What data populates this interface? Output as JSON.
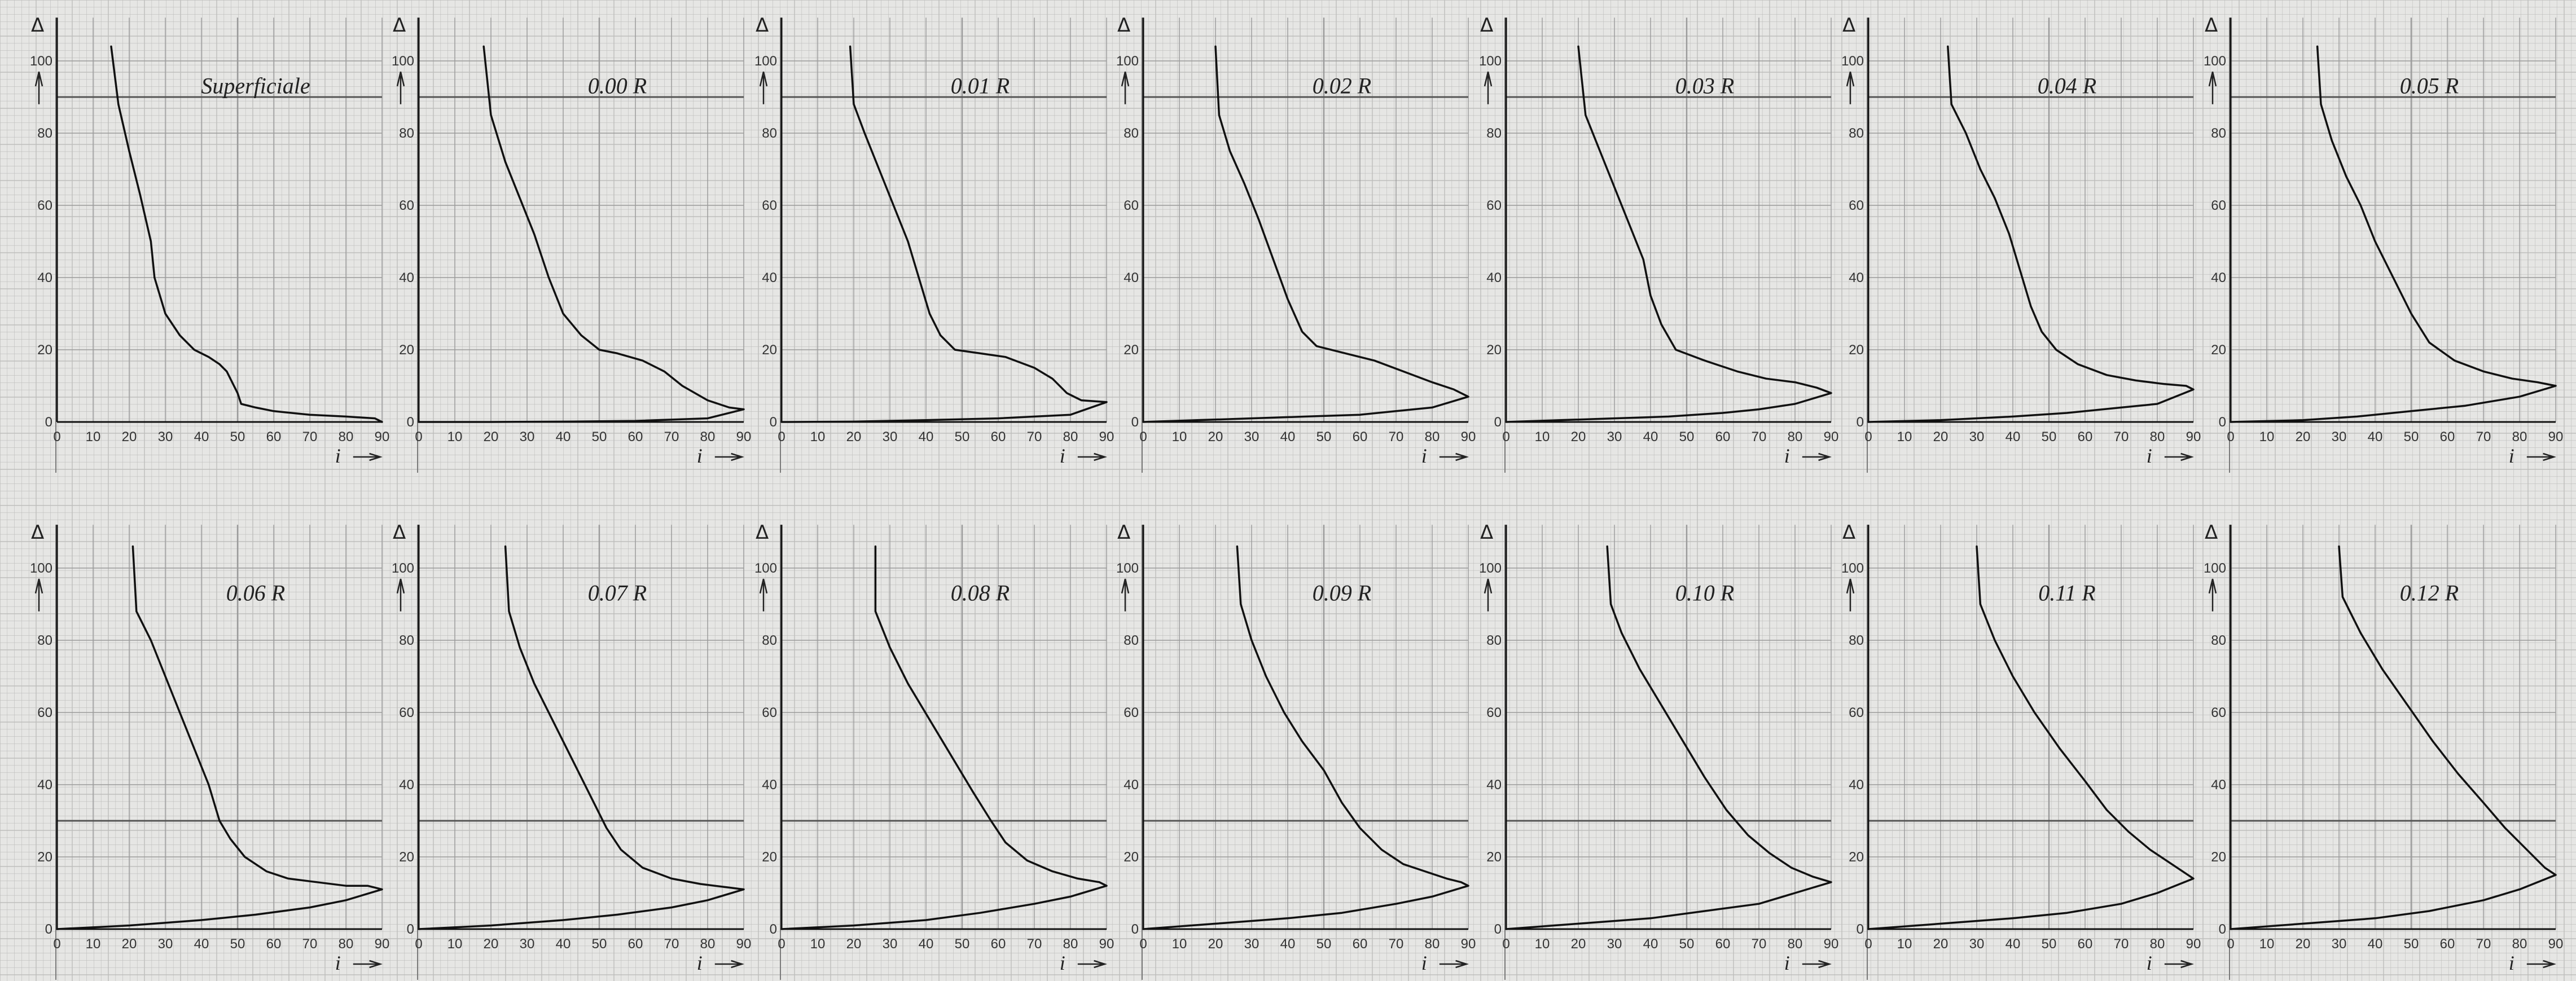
{
  "chart_data": [
    {
      "type": "line",
      "title": "Superficiale",
      "ylabel": "Δ",
      "xlabel": "i",
      "xlim": [
        0,
        90
      ],
      "ylim": [
        0,
        100
      ],
      "xticks": [
        0,
        10,
        20,
        30,
        40,
        50,
        60,
        70,
        80,
        90
      ],
      "yticks": [
        0,
        20,
        40,
        60,
        80,
        100
      ],
      "x": [
        15,
        17,
        20,
        23,
        26,
        27,
        30,
        34,
        38,
        42,
        45,
        47,
        48,
        49,
        50,
        51,
        55,
        60,
        70,
        80,
        88,
        90
      ],
      "y": [
        104,
        88,
        75,
        63,
        50,
        40,
        30,
        24,
        20,
        18,
        16,
        14,
        12,
        10,
        8,
        5,
        4,
        3,
        2,
        1.5,
        1,
        0
      ]
    },
    {
      "type": "line",
      "title": "0.00 R",
      "ylabel": "Δ",
      "xlabel": "i",
      "xlim": [
        0,
        90
      ],
      "ylim": [
        0,
        100
      ],
      "xticks": [
        0,
        10,
        20,
        30,
        40,
        50,
        60,
        70,
        80,
        90
      ],
      "yticks": [
        0,
        20,
        40,
        60,
        80,
        100
      ],
      "x": [
        18,
        20,
        24,
        28,
        32,
        36,
        40,
        45,
        50,
        55,
        62,
        68,
        73,
        80,
        86,
        90,
        80,
        60,
        40,
        20,
        0
      ],
      "y": [
        104,
        85,
        72,
        62,
        52,
        40,
        30,
        24,
        20,
        19,
        17,
        14,
        10,
        6,
        4,
        3.5,
        1,
        0.3,
        0.1,
        0,
        0
      ]
    },
    {
      "type": "line",
      "title": "0.01 R",
      "ylabel": "Δ",
      "xlabel": "i",
      "xlim": [
        0,
        90
      ],
      "ylim": [
        0,
        100
      ],
      "xticks": [
        0,
        10,
        20,
        30,
        40,
        50,
        60,
        70,
        80,
        90
      ],
      "yticks": [
        0,
        20,
        40,
        60,
        80,
        100
      ],
      "x": [
        19,
        20,
        23,
        27,
        31,
        35,
        38,
        41,
        44,
        48,
        55,
        62,
        70,
        75,
        79,
        83,
        90,
        80,
        60,
        40,
        20,
        0
      ],
      "y": [
        104,
        88,
        80,
        70,
        60,
        50,
        40,
        30,
        24,
        20,
        19,
        18,
        15,
        12,
        8,
        6,
        5.5,
        2,
        1,
        0.5,
        0.1,
        0
      ]
    },
    {
      "type": "line",
      "title": "0.02 R",
      "ylabel": "Δ",
      "xlabel": "i",
      "xlim": [
        0,
        90
      ],
      "ylim": [
        0,
        100
      ],
      "xticks": [
        0,
        10,
        20,
        30,
        40,
        50,
        60,
        70,
        80,
        90
      ],
      "yticks": [
        0,
        20,
        40,
        60,
        80,
        100
      ],
      "x": [
        20,
        21,
        24,
        28,
        32,
        36,
        40,
        44,
        48,
        56,
        64,
        72,
        80,
        86,
        90,
        80,
        70,
        60,
        45,
        30,
        15,
        0
      ],
      "y": [
        104,
        85,
        75,
        66,
        56,
        45,
        34,
        25,
        21,
        19,
        17,
        14,
        11,
        9,
        7,
        4,
        3,
        2,
        1.5,
        1,
        0.5,
        0
      ]
    },
    {
      "type": "line",
      "title": "0.03 R",
      "ylabel": "Δ",
      "xlabel": "i",
      "xlim": [
        0,
        90
      ],
      "ylim": [
        0,
        100
      ],
      "xticks": [
        0,
        10,
        20,
        30,
        40,
        50,
        60,
        70,
        80,
        90
      ],
      "yticks": [
        0,
        20,
        40,
        60,
        80,
        100
      ],
      "x": [
        20,
        22,
        26,
        30,
        34,
        38,
        40,
        43,
        47,
        55,
        64,
        72,
        80,
        86,
        90,
        80,
        70,
        60,
        45,
        30,
        15,
        0
      ],
      "y": [
        104,
        85,
        75,
        65,
        55,
        45,
        35,
        27,
        20,
        17,
        14,
        12,
        11,
        9.5,
        8,
        5,
        3.5,
        2.5,
        1.5,
        1,
        0.5,
        0
      ]
    },
    {
      "type": "line",
      "title": "0.04 R",
      "ylabel": "Δ",
      "xlabel": "i",
      "xlim": [
        0,
        90
      ],
      "ylim": [
        0,
        100
      ],
      "xticks": [
        0,
        10,
        20,
        30,
        40,
        50,
        60,
        70,
        80,
        90
      ],
      "yticks": [
        0,
        20,
        40,
        60,
        80,
        100
      ],
      "x": [
        22,
        23,
        27,
        31,
        35,
        39,
        42,
        45,
        48,
        52,
        58,
        66,
        74,
        82,
        88,
        90,
        80,
        70,
        55,
        40,
        20,
        0
      ],
      "y": [
        104,
        88,
        80,
        70,
        62,
        52,
        42,
        32,
        25,
        20,
        16,
        13,
        11.5,
        10.5,
        10,
        9,
        5,
        4,
        2.5,
        1.5,
        0.5,
        0
      ]
    },
    {
      "type": "line",
      "title": "0.05 R",
      "ylabel": "Δ",
      "xlabel": "i",
      "xlim": [
        0,
        90
      ],
      "ylim": [
        0,
        100
      ],
      "xticks": [
        0,
        10,
        20,
        30,
        40,
        50,
        60,
        70,
        80,
        90
      ],
      "yticks": [
        0,
        20,
        40,
        60,
        80,
        100
      ],
      "x": [
        24,
        25,
        28,
        32,
        36,
        40,
        45,
        50,
        55,
        62,
        70,
        78,
        85,
        90,
        80,
        65,
        50,
        35,
        20,
        0
      ],
      "y": [
        104,
        88,
        78,
        68,
        60,
        50,
        40,
        30,
        22,
        17,
        14,
        12,
        11,
        10,
        7,
        4.5,
        3,
        1.5,
        0.5,
        0
      ]
    },
    {
      "type": "line",
      "title": "0.06 R",
      "ylabel": "Δ",
      "xlabel": "i",
      "xlim": [
        0,
        90
      ],
      "ylim": [
        0,
        100
      ],
      "xticks": [
        0,
        10,
        20,
        30,
        40,
        50,
        60,
        70,
        80,
        90
      ],
      "yticks": [
        0,
        20,
        40,
        60,
        80,
        100
      ],
      "x": [
        21,
        22,
        26,
        30,
        34,
        38,
        42,
        45,
        48,
        52,
        58,
        64,
        72,
        80,
        86,
        90,
        80,
        70,
        55,
        40,
        20,
        0
      ],
      "y": [
        106,
        88,
        80,
        70,
        60,
        50,
        40,
        30,
        25,
        20,
        16,
        14,
        13,
        12,
        12,
        11,
        8,
        6,
        4,
        2.5,
        1,
        0
      ]
    },
    {
      "type": "line",
      "title": "0.07 R",
      "ylabel": "Δ",
      "xlabel": "i",
      "xlim": [
        0,
        90
      ],
      "ylim": [
        0,
        100
      ],
      "xticks": [
        0,
        10,
        20,
        30,
        40,
        50,
        60,
        70,
        80,
        90
      ],
      "yticks": [
        0,
        20,
        40,
        60,
        80,
        100
      ],
      "x": [
        24,
        25,
        28,
        32,
        37,
        42,
        47,
        52,
        56,
        62,
        70,
        78,
        86,
        90,
        80,
        70,
        55,
        40,
        20,
        0
      ],
      "y": [
        106,
        88,
        78,
        68,
        58,
        48,
        38,
        28,
        22,
        17,
        14,
        12.5,
        11.5,
        11,
        8,
        6,
        4,
        2.5,
        1,
        0
      ]
    },
    {
      "type": "line",
      "title": "0.08 R",
      "ylabel": "Δ",
      "xlabel": "i",
      "xlim": [
        0,
        90
      ],
      "ylim": [
        0,
        100
      ],
      "xticks": [
        0,
        10,
        20,
        30,
        40,
        50,
        60,
        70,
        80,
        90
      ],
      "yticks": [
        0,
        20,
        40,
        60,
        80,
        100
      ],
      "x": [
        26,
        26,
        30,
        35,
        41,
        47,
        53,
        58,
        62,
        68,
        75,
        82,
        88,
        90,
        80,
        70,
        55,
        40,
        20,
        0
      ],
      "y": [
        106,
        88,
        78,
        68,
        58,
        48,
        38,
        30,
        24,
        19,
        16,
        14,
        13,
        12,
        9,
        7,
        4.5,
        2.5,
        1,
        0
      ]
    },
    {
      "type": "line",
      "title": "0.09 R",
      "ylabel": "Δ",
      "xlabel": "i",
      "xlim": [
        0,
        90
      ],
      "ylim": [
        0,
        100
      ],
      "xticks": [
        0,
        10,
        20,
        30,
        40,
        50,
        60,
        70,
        80,
        90
      ],
      "yticks": [
        0,
        20,
        40,
        60,
        80,
        100
      ],
      "x": [
        26,
        27,
        30,
        34,
        39,
        44,
        50,
        55,
        60,
        66,
        72,
        78,
        84,
        88,
        90,
        80,
        70,
        55,
        40,
        20,
        0
      ],
      "y": [
        106,
        90,
        80,
        70,
        60,
        52,
        44,
        35,
        28,
        22,
        18,
        16,
        14,
        13,
        12,
        9,
        7,
        4.5,
        3,
        1.5,
        0
      ]
    },
    {
      "type": "line",
      "title": "0.10 R",
      "ylabel": "Δ",
      "xlabel": "i",
      "xlim": [
        0,
        90
      ],
      "ylim": [
        0,
        100
      ],
      "xticks": [
        0,
        10,
        20,
        30,
        40,
        50,
        60,
        70,
        80,
        90
      ],
      "yticks": [
        0,
        20,
        40,
        60,
        80,
        100
      ],
      "x": [
        28,
        29,
        32,
        37,
        43,
        49,
        55,
        61,
        67,
        73,
        79,
        85,
        90,
        80,
        70,
        55,
        40,
        20,
        0
      ],
      "y": [
        106,
        90,
        82,
        72,
        62,
        52,
        42,
        33,
        26,
        21,
        17,
        14.5,
        13,
        10,
        7,
        5,
        3,
        1.5,
        0
      ]
    },
    {
      "type": "line",
      "title": "0.11 R",
      "ylabel": "Δ",
      "xlabel": "i",
      "xlim": [
        0,
        90
      ],
      "ylim": [
        0,
        100
      ],
      "xticks": [
        0,
        10,
        20,
        30,
        40,
        50,
        60,
        70,
        80,
        90
      ],
      "yticks": [
        0,
        20,
        40,
        60,
        80,
        100
      ],
      "x": [
        30,
        31,
        35,
        40,
        46,
        53,
        60,
        66,
        72,
        78,
        84,
        90,
        80,
        70,
        55,
        40,
        20,
        0
      ],
      "y": [
        106,
        90,
        80,
        70,
        60,
        50,
        41,
        33,
        27,
        22,
        18,
        14,
        10,
        7,
        4.5,
        3,
        1.5,
        0
      ]
    },
    {
      "type": "line",
      "title": "0.12 R",
      "ylabel": "Δ",
      "xlabel": "i",
      "xlim": [
        0,
        90
      ],
      "ylim": [
        0,
        100
      ],
      "xticks": [
        0,
        10,
        20,
        30,
        40,
        50,
        60,
        70,
        80,
        90
      ],
      "yticks": [
        0,
        20,
        40,
        60,
        80,
        100
      ],
      "x": [
        30,
        31,
        36,
        42,
        49,
        56,
        63,
        70,
        76,
        82,
        87,
        90,
        80,
        70,
        55,
        40,
        20,
        0
      ],
      "y": [
        106,
        92,
        82,
        72,
        62,
        52,
        43,
        35,
        28,
        22,
        17,
        15,
        11,
        8,
        5,
        3,
        1.5,
        0
      ]
    }
  ]
}
